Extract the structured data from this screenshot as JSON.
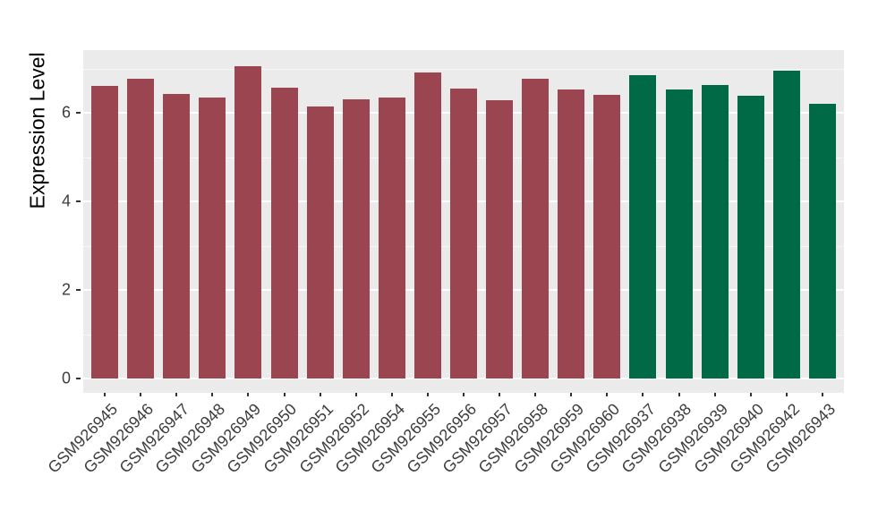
{
  "chart_data": {
    "type": "bar",
    "title": "",
    "xlabel": "",
    "ylabel": "Expression Level",
    "ylim": [
      0,
      7.42
    ],
    "yticks": [
      0,
      2,
      4,
      6
    ],
    "minor_gridlines": [
      1,
      3,
      5,
      7
    ],
    "legend_position": "none",
    "grid": "white major and minor gridlines on gray panel",
    "panel_bg": "#EBEBEB",
    "tick_text_color": "#3d3d3d",
    "group_colors": {
      "group1": "#9A4550",
      "group2": "#006945"
    },
    "bars": [
      {
        "label": "GSM926945",
        "value": 6.61,
        "group": "group1"
      },
      {
        "label": "GSM926946",
        "value": 6.76,
        "group": "group1"
      },
      {
        "label": "GSM926947",
        "value": 6.43,
        "group": "group1"
      },
      {
        "label": "GSM926948",
        "value": 6.35,
        "group": "group1"
      },
      {
        "label": "GSM926949",
        "value": 7.06,
        "group": "group1"
      },
      {
        "label": "GSM926950",
        "value": 6.57,
        "group": "group1"
      },
      {
        "label": "GSM926951",
        "value": 6.14,
        "group": "group1"
      },
      {
        "label": "GSM926952",
        "value": 6.31,
        "group": "group1"
      },
      {
        "label": "GSM926954",
        "value": 6.35,
        "group": "group1"
      },
      {
        "label": "GSM926955",
        "value": 6.9,
        "group": "group1"
      },
      {
        "label": "GSM926956",
        "value": 6.55,
        "group": "group1"
      },
      {
        "label": "GSM926957",
        "value": 6.28,
        "group": "group1"
      },
      {
        "label": "GSM926958",
        "value": 6.76,
        "group": "group1"
      },
      {
        "label": "GSM926959",
        "value": 6.53,
        "group": "group1"
      },
      {
        "label": "GSM926960",
        "value": 6.41,
        "group": "group1"
      },
      {
        "label": "GSM926937",
        "value": 6.85,
        "group": "group2"
      },
      {
        "label": "GSM926938",
        "value": 6.52,
        "group": "group2"
      },
      {
        "label": "GSM926939",
        "value": 6.63,
        "group": "group2"
      },
      {
        "label": "GSM926940",
        "value": 6.38,
        "group": "group2"
      },
      {
        "label": "GSM926942",
        "value": 6.94,
        "group": "group2"
      },
      {
        "label": "GSM926943",
        "value": 6.21,
        "group": "group2"
      }
    ]
  }
}
